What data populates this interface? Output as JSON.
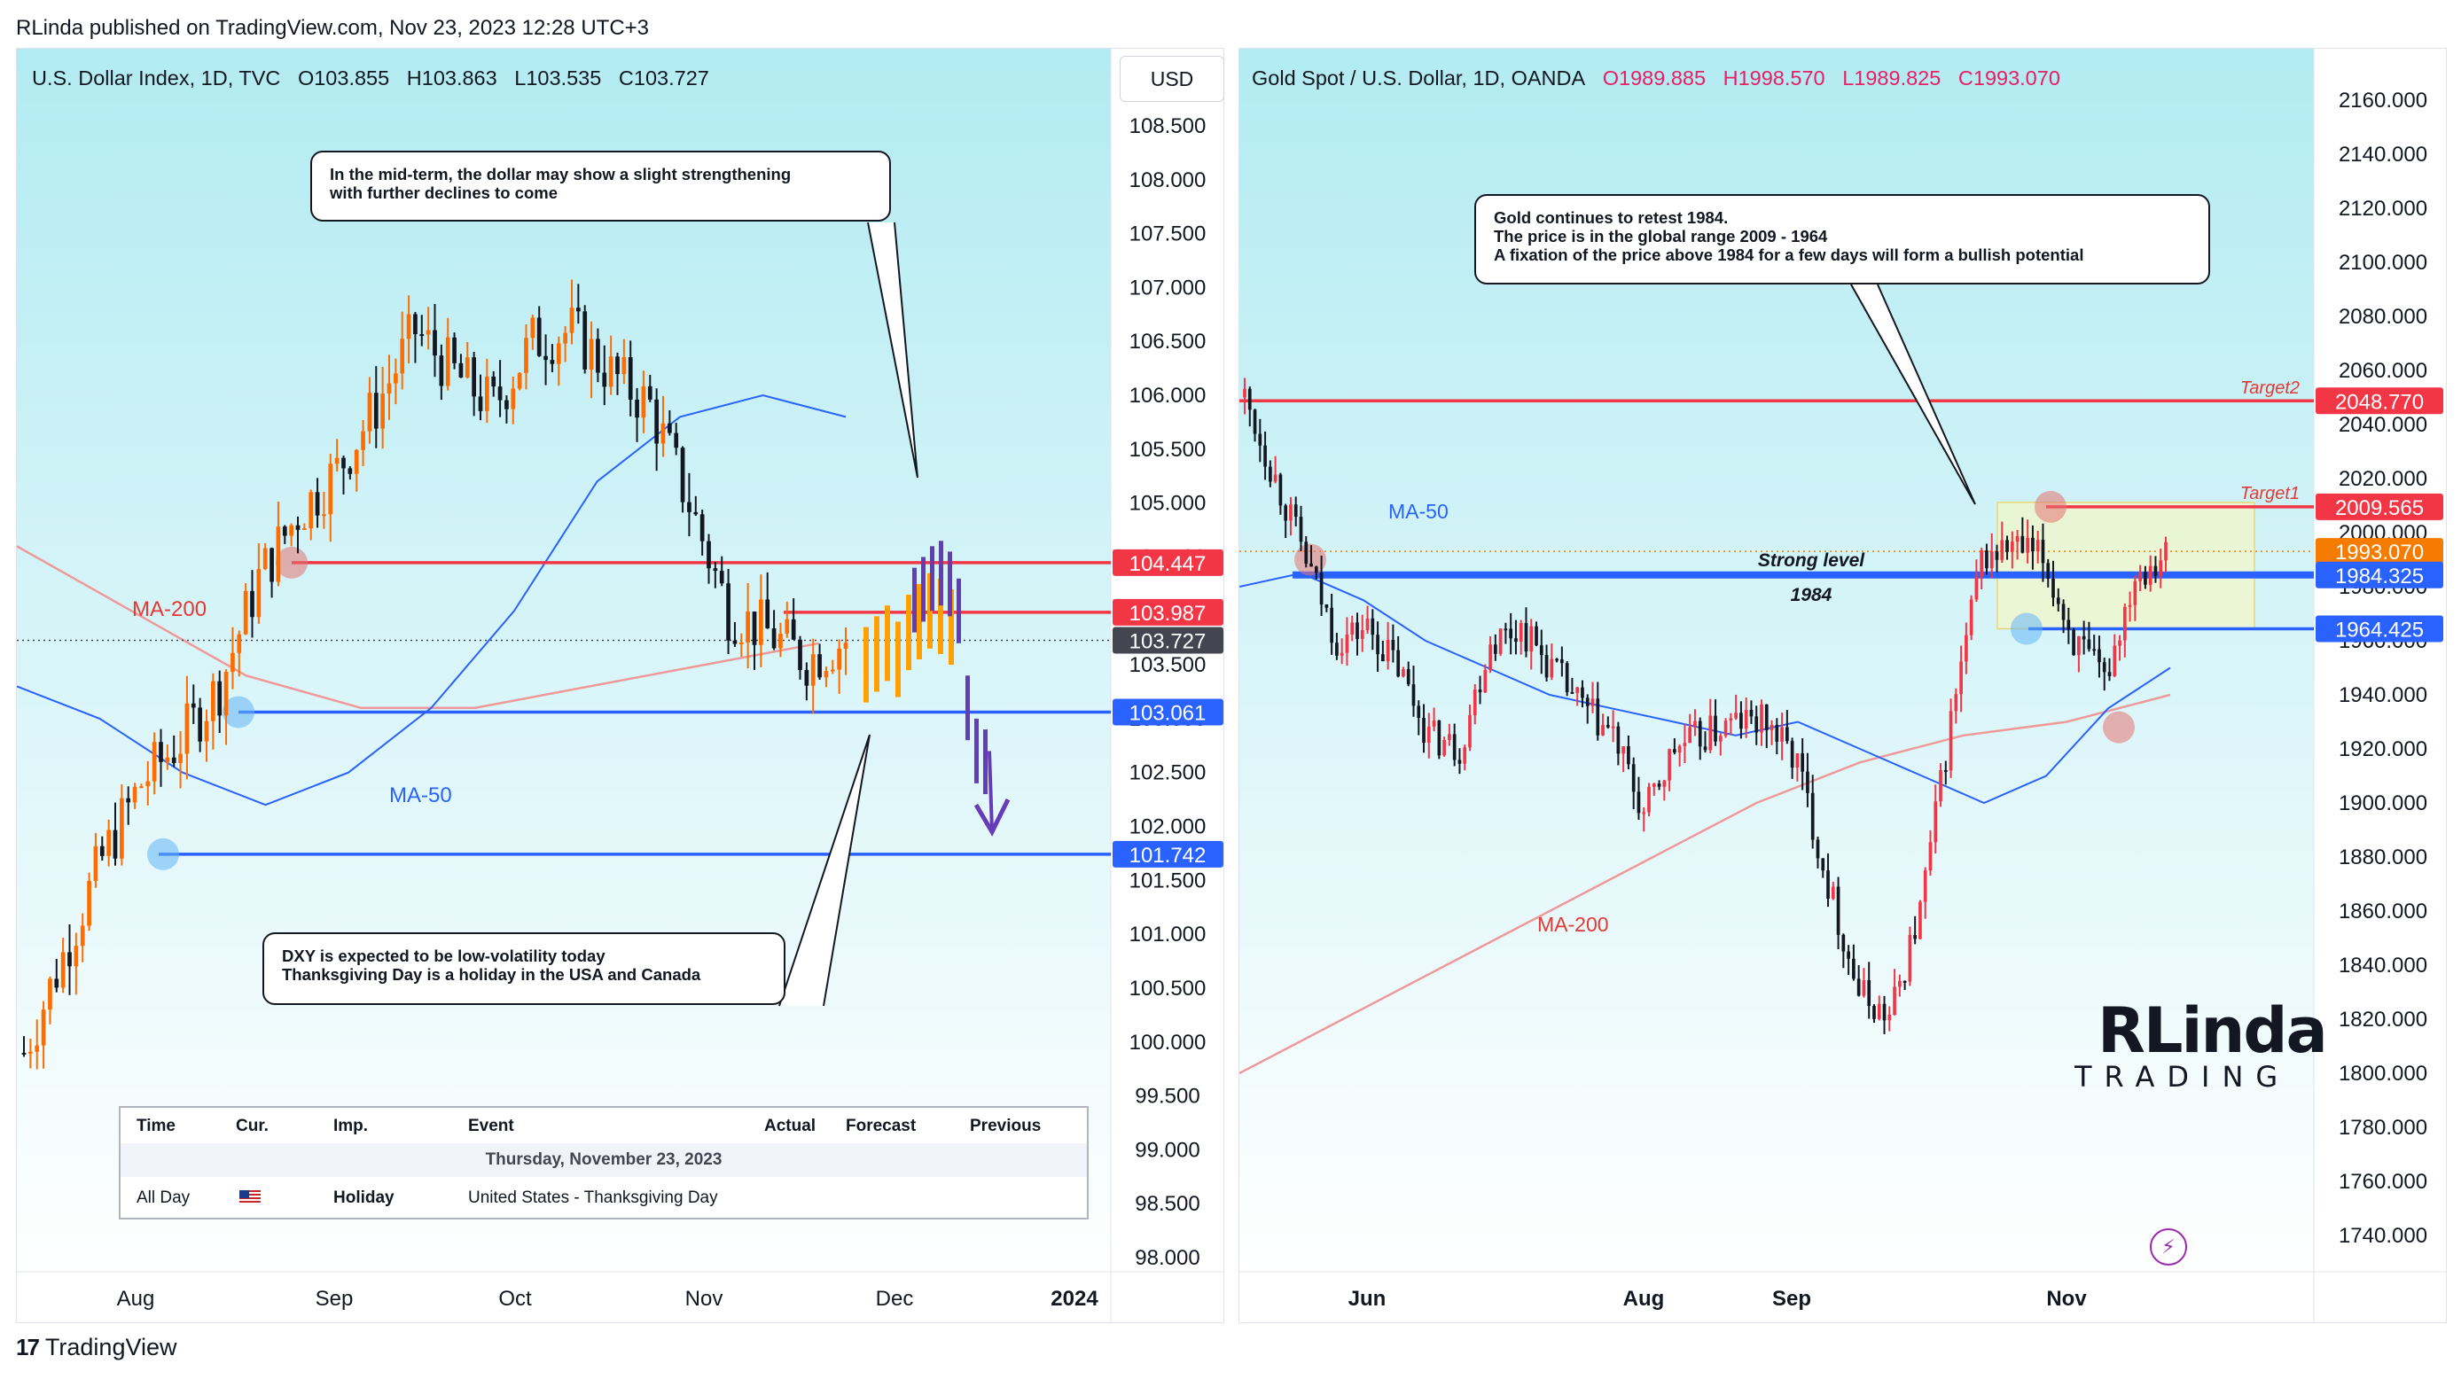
{
  "header": {
    "text": "RLinda published on TradingView.com, Nov 23, 2023 12:28 UTC+3"
  },
  "footer": {
    "brand": "TradingView"
  },
  "colors": {
    "up": "#f23645",
    "down": "#131722",
    "orange_up": "#ff6d00",
    "ma50": "#2962ff",
    "ma200": "#ef9a9a",
    "support": "#2962ff",
    "resistance": "#f23645",
    "bg_top": "#b2ebf2",
    "forecast_purple": "#673ab7",
    "forecast_orange": "#ffa000"
  },
  "left_chart": {
    "legend": {
      "symbol": "U.S. Dollar Index, 1D, TVC",
      "open": "O103.855",
      "high": "H103.863",
      "low": "L103.535",
      "close": "C103.727"
    },
    "currency": "USD",
    "y_ticks": [
      "108.500",
      "108.000",
      "107.500",
      "107.000",
      "106.500",
      "106.000",
      "105.500",
      "105.000",
      "104.500",
      "104.000",
      "103.500",
      "103.000",
      "102.500",
      "102.000",
      "101.500",
      "101.000",
      "100.500",
      "100.000",
      "99.500",
      "99.000",
      "98.500",
      "98.000"
    ],
    "x_ticks": [
      "Aug",
      "Sep",
      "Oct",
      "Nov",
      "Dec",
      "2024"
    ],
    "labels": {
      "ma200": "MA-200",
      "ma50": "MA-50"
    },
    "price_tags": [
      {
        "value": "104.447",
        "kind": "resistance"
      },
      {
        "value": "103.987",
        "kind": "resistance"
      },
      {
        "value": "103.727",
        "kind": "current"
      },
      {
        "value": "103.061",
        "kind": "support"
      },
      {
        "value": "101.742",
        "kind": "support"
      }
    ],
    "callout_top": {
      "line1": "In the mid-term, the dollar may show a slight strengthening",
      "line2": "with further declines to come"
    },
    "callout_bottom": {
      "line1": "DXY is expected to be low-volatility today",
      "line2": "Thanksgiving Day is a holiday in the USA and Canada"
    },
    "calendar": {
      "headers": [
        "Time",
        "Cur.",
        "Imp.",
        "Event",
        "Actual",
        "Forecast",
        "Previous"
      ],
      "date": "Thursday, November 23, 2023",
      "row": {
        "time": "All Day",
        "importance": "Holiday",
        "event": "United States - Thanksgiving Day"
      }
    }
  },
  "right_chart": {
    "legend": {
      "symbol": "Gold Spot / U.S. Dollar, 1D, OANDA",
      "open": "O1989.885",
      "high": "H1998.570",
      "low": "L1989.825",
      "close": "C1993.070"
    },
    "y_ticks": [
      "2160.000",
      "2140.000",
      "2120.000",
      "2100.000",
      "2080.000",
      "2060.000",
      "2040.000",
      "2020.000",
      "2000.000",
      "1980.000",
      "1960.000",
      "1940.000",
      "1920.000",
      "1900.000",
      "1880.000",
      "1860.000",
      "1840.000",
      "1820.000",
      "1800.000",
      "1780.000",
      "1760.000",
      "1740.000"
    ],
    "x_ticks": [
      "Jun",
      "Aug",
      "Sep",
      "Nov"
    ],
    "labels": {
      "ma50": "MA-50",
      "ma200": "MA-200",
      "strong_level": "Strong level",
      "level_1984": "1984",
      "target1": "Target1",
      "target2": "Target2"
    },
    "price_tags": [
      {
        "value": "2048.770",
        "kind": "resistance"
      },
      {
        "value": "2009.565",
        "kind": "resistance"
      },
      {
        "value": "1993.070",
        "kind": "current"
      },
      {
        "value": "1984.325",
        "kind": "support"
      },
      {
        "value": "1964.425",
        "kind": "support"
      }
    ],
    "callout": {
      "line1": "Gold continues to retest 1984.",
      "line2": "The price is in the global range 2009 - 1964",
      "line3": "A fixation of the price above 1984 for a few days will form a bullish potential"
    },
    "logo": {
      "big": "RLinda",
      "small": "TRADING"
    }
  },
  "chart_data": [
    {
      "type": "candlestick",
      "title": "U.S. Dollar Index, 1D, TVC",
      "ylim": [
        98.0,
        108.75
      ],
      "x": [
        "Jul 10",
        "Aug 1",
        "Sep 1",
        "Oct 2",
        "Nov 1",
        "Nov 23",
        "Dec 1",
        "Jan 1 2024"
      ],
      "levels": [
        104.447,
        103.987,
        103.727,
        103.061,
        101.742
      ],
      "close_path_approx": [
        99.9,
        100.8,
        101.7,
        102.4,
        102.8,
        103.3,
        104.3,
        104.9,
        105.3,
        105.9,
        106.6,
        106.2,
        105.9,
        106.5,
        106.6,
        106.2,
        105.9,
        105.0,
        104.0,
        103.8,
        103.55,
        103.727
      ],
      "ma50_approx": [
        103.3,
        103.0,
        102.5,
        102.2,
        102.5,
        103.1,
        104.0,
        105.2,
        105.8,
        106.0,
        105.8
      ],
      "ma200_approx": [
        104.6,
        104.0,
        103.4,
        103.1,
        103.1,
        103.3,
        103.5,
        103.7
      ]
    },
    {
      "type": "candlestick",
      "title": "Gold Spot / U.S. Dollar, 1D, OANDA",
      "ylim": [
        1730,
        2170
      ],
      "x": [
        "May 1",
        "Jun 1",
        "Aug 1",
        "Sep 1",
        "Nov 1",
        "Nov 23"
      ],
      "levels": [
        2048.77,
        2009.565,
        1993.07,
        1984.325,
        1964.425
      ],
      "close_path_approx": [
        2050,
        2020,
        1990,
        1960,
        1965,
        1950,
        1925,
        1920,
        1960,
        1965,
        1950,
        1935,
        1925,
        1895,
        1920,
        1925,
        1930,
        1930,
        1915,
        1870,
        1830,
        1820,
        1860,
        1930,
        1990,
        1995,
        1990,
        1960,
        1945,
        1985,
        1993.07
      ],
      "ma50_approx": [
        1980,
        1985,
        1975,
        1960,
        1950,
        1940,
        1935,
        1930,
        1925,
        1930,
        1920,
        1910,
        1900,
        1910,
        1935,
        1950
      ],
      "ma200_approx": [
        1800,
        1820,
        1840,
        1860,
        1880,
        1900,
        1915,
        1925,
        1930,
        1940
      ]
    }
  ]
}
